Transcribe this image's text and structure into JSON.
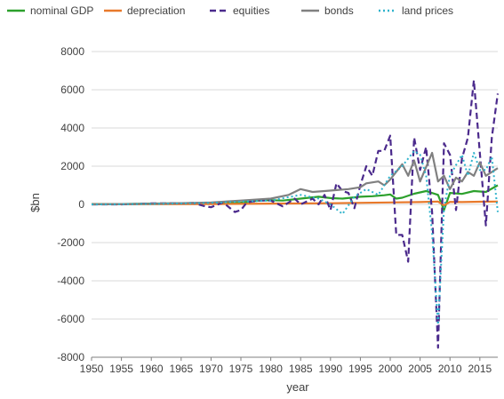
{
  "chart_data": {
    "type": "line",
    "xlabel": "year",
    "ylabel": "$bn",
    "xlim": [
      1950,
      2018
    ],
    "ylim": [
      -8000,
      8000
    ],
    "x_ticks": [
      "1950",
      "1955",
      "1960",
      "1965",
      "1970",
      "1975",
      "1980",
      "1985",
      "1990",
      "1995",
      "2000",
      "2005",
      "2010",
      "2015"
    ],
    "y_ticks": [
      "8000",
      "6000",
      "4000",
      "2000",
      "0",
      "-2000",
      "-4000",
      "-6000",
      "-8000"
    ],
    "grid": true,
    "legend_position": "top",
    "series": [
      {
        "name": "nominal GDP",
        "color": "#2ca02c",
        "style": "solid",
        "points": [
          [
            1950,
            20
          ],
          [
            1955,
            20
          ],
          [
            1960,
            40
          ],
          [
            1965,
            60
          ],
          [
            1970,
            70
          ],
          [
            1975,
            90
          ],
          [
            1978,
            200
          ],
          [
            1980,
            220
          ],
          [
            1982,
            200
          ],
          [
            1985,
            300
          ],
          [
            1988,
            400
          ],
          [
            1990,
            330
          ],
          [
            1992,
            300
          ],
          [
            1995,
            400
          ],
          [
            1997,
            430
          ],
          [
            1999,
            480
          ],
          [
            2000,
            520
          ],
          [
            2001,
            300
          ],
          [
            2002,
            350
          ],
          [
            2004,
            560
          ],
          [
            2006,
            700
          ],
          [
            2008,
            500
          ],
          [
            2009,
            -300
          ],
          [
            2010,
            600
          ],
          [
            2012,
            550
          ],
          [
            2014,
            700
          ],
          [
            2016,
            650
          ],
          [
            2018,
            1000
          ]
        ]
      },
      {
        "name": "depreciation",
        "color": "#e8792b",
        "style": "solid",
        "points": [
          [
            1950,
            5
          ],
          [
            1960,
            10
          ],
          [
            1970,
            20
          ],
          [
            1980,
            40
          ],
          [
            1990,
            60
          ],
          [
            2000,
            100
          ],
          [
            2005,
            120
          ],
          [
            2008,
            150
          ],
          [
            2009,
            -50
          ],
          [
            2010,
            130
          ],
          [
            2012,
            120
          ],
          [
            2015,
            140
          ],
          [
            2018,
            150
          ]
        ]
      },
      {
        "name": "equities",
        "color": "#4b2a8c",
        "style": "dashed",
        "points": [
          [
            1950,
            0
          ],
          [
            1955,
            0
          ],
          [
            1960,
            50
          ],
          [
            1965,
            60
          ],
          [
            1967,
            80
          ],
          [
            1969,
            -100
          ],
          [
            1970,
            -150
          ],
          [
            1972,
            100
          ],
          [
            1974,
            -400
          ],
          [
            1975,
            -300
          ],
          [
            1976,
            100
          ],
          [
            1978,
            200
          ],
          [
            1980,
            200
          ],
          [
            1982,
            -100
          ],
          [
            1984,
            300
          ],
          [
            1985,
            0
          ],
          [
            1987,
            300
          ],
          [
            1988,
            0
          ],
          [
            1989,
            500
          ],
          [
            1990,
            -300
          ],
          [
            1991,
            1100
          ],
          [
            1992,
            700
          ],
          [
            1993,
            600
          ],
          [
            1994,
            -200
          ],
          [
            1995,
            1000
          ],
          [
            1996,
            2000
          ],
          [
            1997,
            1500
          ],
          [
            1998,
            2800
          ],
          [
            1999,
            2800
          ],
          [
            2000,
            3600
          ],
          [
            2001,
            -1600
          ],
          [
            2002,
            -1600
          ],
          [
            2003,
            -3000
          ],
          [
            2004,
            3500
          ],
          [
            2005,
            1800
          ],
          [
            2006,
            3000
          ],
          [
            2007,
            -400
          ],
          [
            2008,
            -7500
          ],
          [
            2009,
            3200
          ],
          [
            2010,
            2600
          ],
          [
            2011,
            -300
          ],
          [
            2012,
            2400
          ],
          [
            2013,
            3500
          ],
          [
            2014,
            6500
          ],
          [
            2015,
            2700
          ],
          [
            2016,
            -1100
          ],
          [
            2017,
            3500
          ],
          [
            2018,
            5800
          ]
        ]
      },
      {
        "name": "bonds",
        "color": "#808080",
        "style": "solid",
        "points": [
          [
            1950,
            0
          ],
          [
            1960,
            30
          ],
          [
            1970,
            100
          ],
          [
            1975,
            200
          ],
          [
            1980,
            300
          ],
          [
            1983,
            500
          ],
          [
            1985,
            800
          ],
          [
            1987,
            650
          ],
          [
            1989,
            700
          ],
          [
            1991,
            750
          ],
          [
            1993,
            800
          ],
          [
            1995,
            900
          ],
          [
            1996,
            1100
          ],
          [
            1998,
            1200
          ],
          [
            1999,
            1000
          ],
          [
            2000,
            1300
          ],
          [
            2002,
            2100
          ],
          [
            2003,
            1500
          ],
          [
            2004,
            2300
          ],
          [
            2005,
            1200
          ],
          [
            2007,
            2700
          ],
          [
            2008,
            1200
          ],
          [
            2009,
            1500
          ],
          [
            2010,
            800
          ],
          [
            2011,
            1400
          ],
          [
            2012,
            1200
          ],
          [
            2013,
            1700
          ],
          [
            2014,
            1500
          ],
          [
            2015,
            2200
          ],
          [
            2016,
            1500
          ],
          [
            2018,
            1900
          ]
        ]
      },
      {
        "name": "land prices",
        "color": "#2fb3cc",
        "style": "dotted",
        "points": [
          [
            1950,
            0
          ],
          [
            1960,
            20
          ],
          [
            1970,
            80
          ],
          [
            1975,
            150
          ],
          [
            1980,
            200
          ],
          [
            1985,
            500
          ],
          [
            1988,
            300
          ],
          [
            1990,
            0
          ],
          [
            1992,
            -500
          ],
          [
            1994,
            400
          ],
          [
            1996,
            800
          ],
          [
            1998,
            500
          ],
          [
            2000,
            1500
          ],
          [
            2002,
            2000
          ],
          [
            2004,
            2800
          ],
          [
            2005,
            2600
          ],
          [
            2006,
            1500
          ],
          [
            2007,
            -1500
          ],
          [
            2008,
            -6300
          ],
          [
            2009,
            -200
          ],
          [
            2010,
            1500
          ],
          [
            2012,
            2600
          ],
          [
            2013,
            1500
          ],
          [
            2014,
            2700
          ],
          [
            2015,
            1800
          ],
          [
            2016,
            1800
          ],
          [
            2017,
            2500
          ],
          [
            2018,
            -400
          ]
        ]
      }
    ]
  }
}
